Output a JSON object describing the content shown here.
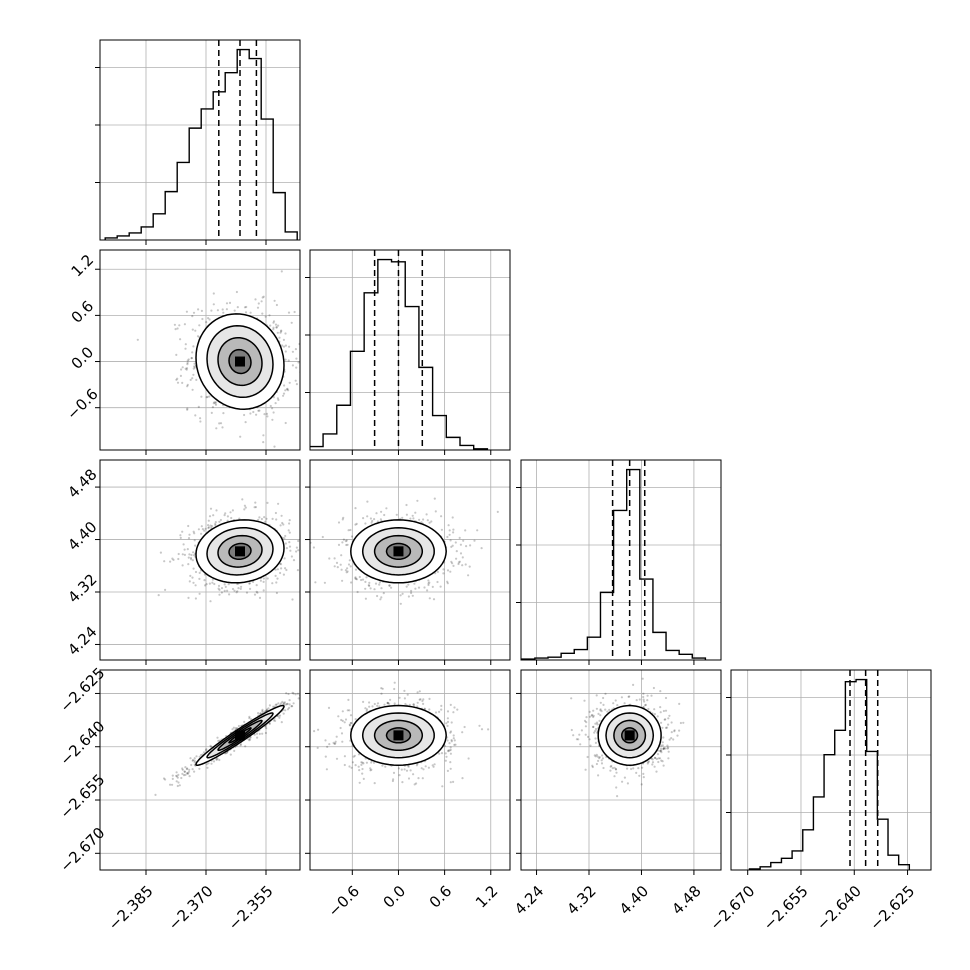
{
  "chart_data": {
    "type": "corner",
    "parameters": 4,
    "grid": true,
    "colors": {
      "line": "#000000",
      "grid": "#b0b0b0",
      "scatter": "#000000"
    },
    "axes": [
      {
        "ticks": [
          -2.385,
          -2.37,
          -2.355
        ],
        "tick_labels": [
          "−2.385",
          "−2.370",
          "−2.355"
        ],
        "range": [
          -2.3965,
          -2.3465
        ]
      },
      {
        "ticks": [
          -0.6,
          0.0,
          0.6,
          1.2
        ],
        "tick_labels": [
          "−0.6",
          "0.0",
          "0.6",
          "1.2"
        ],
        "range": [
          -1.15,
          1.45
        ]
      },
      {
        "ticks": [
          4.24,
          4.32,
          4.4,
          4.48
        ],
        "tick_labels": [
          "4.24",
          "4.32",
          "4.40",
          "4.48"
        ],
        "range": [
          4.2163,
          4.5213
        ]
      },
      {
        "ticks": [
          -2.67,
          -2.655,
          -2.64,
          -2.625
        ],
        "tick_labels": [
          "−2.670",
          "−2.655",
          "−2.640",
          "−2.625"
        ],
        "range": [
          -2.6747,
          -2.6184
        ]
      }
    ],
    "histograms": [
      {
        "bin_edges": [
          -2.3952,
          -2.3922,
          -2.3892,
          -2.3862,
          -2.3832,
          -2.3802,
          -2.3772,
          -2.3742,
          -2.3712,
          -2.3682,
          -2.3652,
          -2.3622,
          -2.3592,
          -2.3562,
          -2.3532,
          -2.3502,
          -2.3472
        ],
        "counts": [
          2,
          4,
          7,
          13,
          26,
          48,
          77,
          111,
          130,
          147,
          166,
          189,
          180,
          120,
          47,
          8
        ]
      },
      {
        "bin_edges": [
          -1.158,
          -0.98,
          -0.802,
          -0.624,
          -0.446,
          -0.268,
          -0.09,
          0.088,
          0.266,
          0.444,
          0.622,
          0.8,
          0.978,
          1.156
        ],
        "counts": [
          3,
          14,
          39,
          86,
          137,
          166,
          164,
          125,
          72,
          30,
          11,
          4,
          1
        ]
      },
      {
        "bin_edges": [
          4.2175,
          4.2375,
          4.2575,
          4.2775,
          4.2975,
          4.3175,
          4.3375,
          4.3575,
          4.3775,
          4.3975,
          4.4175,
          4.4375,
          4.4575,
          4.4775,
          4.4975
        ],
        "counts": [
          1,
          2,
          3,
          7,
          11,
          24,
          71,
          157,
          200,
          85,
          29,
          10,
          6,
          2
        ]
      },
      {
        "bin_edges": [
          -2.6695,
          -2.6665,
          -2.6635,
          -2.6605,
          -2.6575,
          -2.6545,
          -2.6515,
          -2.6485,
          -2.6455,
          -2.6425,
          -2.6395,
          -2.6365,
          -2.6335,
          -2.6305,
          -2.6275,
          -2.6245
        ],
        "counts": [
          1,
          3,
          7,
          11,
          18,
          38,
          69,
          109,
          132,
          178,
          180,
          112,
          48,
          14,
          5
        ]
      }
    ],
    "quantiles": [
      [
        -2.3668,
        -2.3615,
        -2.3574
      ],
      [
        -0.31,
        0.0,
        0.31
      ],
      [
        4.356,
        4.382,
        4.405
      ],
      [
        -2.6412,
        -2.6368,
        -2.6334
      ]
    ],
    "pairs": [
      {
        "x": 0,
        "y": 1,
        "center": [
          -2.3615,
          0.0
        ],
        "spread": [
          0.0055,
          0.31
        ],
        "rho": -0.08
      },
      {
        "x": 0,
        "y": 2,
        "center": [
          -2.3615,
          4.382
        ],
        "spread": [
          0.0055,
          0.024
        ],
        "rho": 0.1
      },
      {
        "x": 1,
        "y": 2,
        "center": [
          0.0,
          4.382
        ],
        "spread": [
          0.31,
          0.024
        ],
        "rho": 0.0
      },
      {
        "x": 0,
        "y": 3,
        "center": [
          -2.3615,
          -2.6368
        ],
        "spread": [
          0.0055,
          0.0042
        ],
        "rho": 0.97
      },
      {
        "x": 1,
        "y": 3,
        "center": [
          0.0,
          -2.6368
        ],
        "spread": [
          0.31,
          0.0042
        ],
        "rho": 0.0
      },
      {
        "x": 2,
        "y": 3,
        "center": [
          4.382,
          -2.6368
        ],
        "spread": [
          0.024,
          0.0042
        ],
        "rho": 0.0
      }
    ],
    "contour_levels_sigma": [
      0.5,
      1.0,
      1.5,
      2.0
    ]
  }
}
